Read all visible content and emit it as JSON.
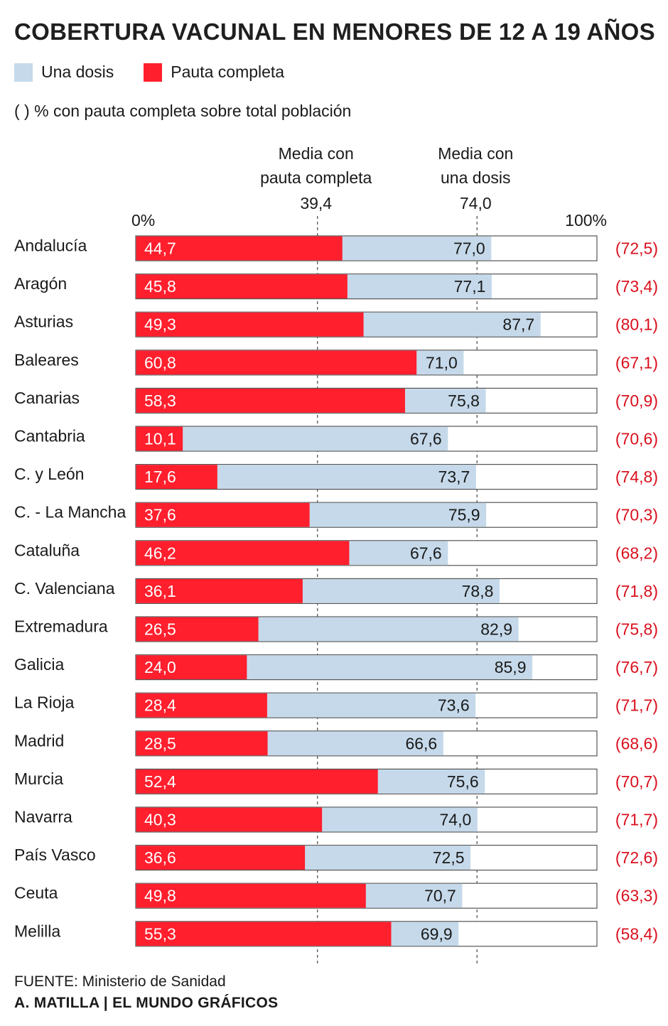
{
  "title": "COBERTURA VACUNAL EN MENORES DE 12 A 19 AÑOS",
  "legend": [
    {
      "label": "Una dosis",
      "color": "#c5d9ea"
    },
    {
      "label": "Pauta completa",
      "color": "#ff1f2d"
    }
  ],
  "note": "( ) % con pauta completa sobre total población",
  "source": "FUENTE: Ministerio de Sanidad",
  "credit": "A. MATILLA | EL MUNDO GRÁFICOS",
  "chart_data": {
    "type": "bar",
    "orientation": "horizontal",
    "xlim": [
      0,
      100
    ],
    "axis_labels": {
      "min": "0%",
      "max": "100%"
    },
    "reference_lines": [
      {
        "label_lines": [
          "Media con",
          "pauta completa"
        ],
        "value": 39.4,
        "value_label": "39,4"
      },
      {
        "label_lines": [
          "Media con",
          "una dosis"
        ],
        "value": 74.0,
        "value_label": "74,0"
      }
    ],
    "categories": [
      "Andalucía",
      "Aragón",
      "Asturias",
      "Baleares",
      "Canarias",
      "Cantabria",
      "C. y León",
      "C. - La Mancha",
      "Cataluña",
      "C. Valenciana",
      "Extremadura",
      "Galicia",
      "La Rioja",
      "Madrid",
      "Murcia",
      "Navarra",
      "País Vasco",
      "Ceuta",
      "Melilla"
    ],
    "series": [
      {
        "name": "Una dosis",
        "values": [
          77.0,
          77.1,
          87.7,
          71.0,
          75.8,
          67.6,
          73.7,
          75.9,
          67.6,
          78.8,
          82.9,
          85.9,
          73.6,
          66.6,
          75.6,
          74.0,
          72.5,
          70.7,
          69.9
        ],
        "labels": [
          "77,0",
          "77,1",
          "87,7",
          "71,0",
          "75,8",
          "67,6",
          "73,7",
          "75,9",
          "67,6",
          "78,8",
          "82,9",
          "85,9",
          "73,6",
          "66,6",
          "75,6",
          "74,0",
          "72,5",
          "70,7",
          "69,9"
        ]
      },
      {
        "name": "Pauta completa",
        "values": [
          44.7,
          45.8,
          49.3,
          60.8,
          58.3,
          10.1,
          17.6,
          37.6,
          46.2,
          36.1,
          26.5,
          24.0,
          28.4,
          28.5,
          52.4,
          40.3,
          36.6,
          49.8,
          55.3
        ],
        "labels": [
          "44,7",
          "45,8",
          "49,3",
          "60,8",
          "58,3",
          "10,1",
          "17,6",
          "37,6",
          "46,2",
          "36,1",
          "26,5",
          "24,0",
          "28,4",
          "28,5",
          "52,4",
          "40,3",
          "36,6",
          "49,8",
          "55,3"
        ]
      }
    ],
    "total_population_labels": [
      "(72,5)",
      "(73,4)",
      "(80,1)",
      "(67,1)",
      "(70,9)",
      "(70,6)",
      "(74,8)",
      "(70,3)",
      "(68,2)",
      "(71,8)",
      "(75,8)",
      "(76,7)",
      "(71,7)",
      "(68,6)",
      "(70,7)",
      "(71,7)",
      "(72,6)",
      "(63,3)",
      "(58,4)"
    ],
    "colors": {
      "una_dosis": "#c5d9ea",
      "pauta_completa": "#ff1f2d",
      "total_label": "#d9101e",
      "frame": "#555555"
    }
  }
}
